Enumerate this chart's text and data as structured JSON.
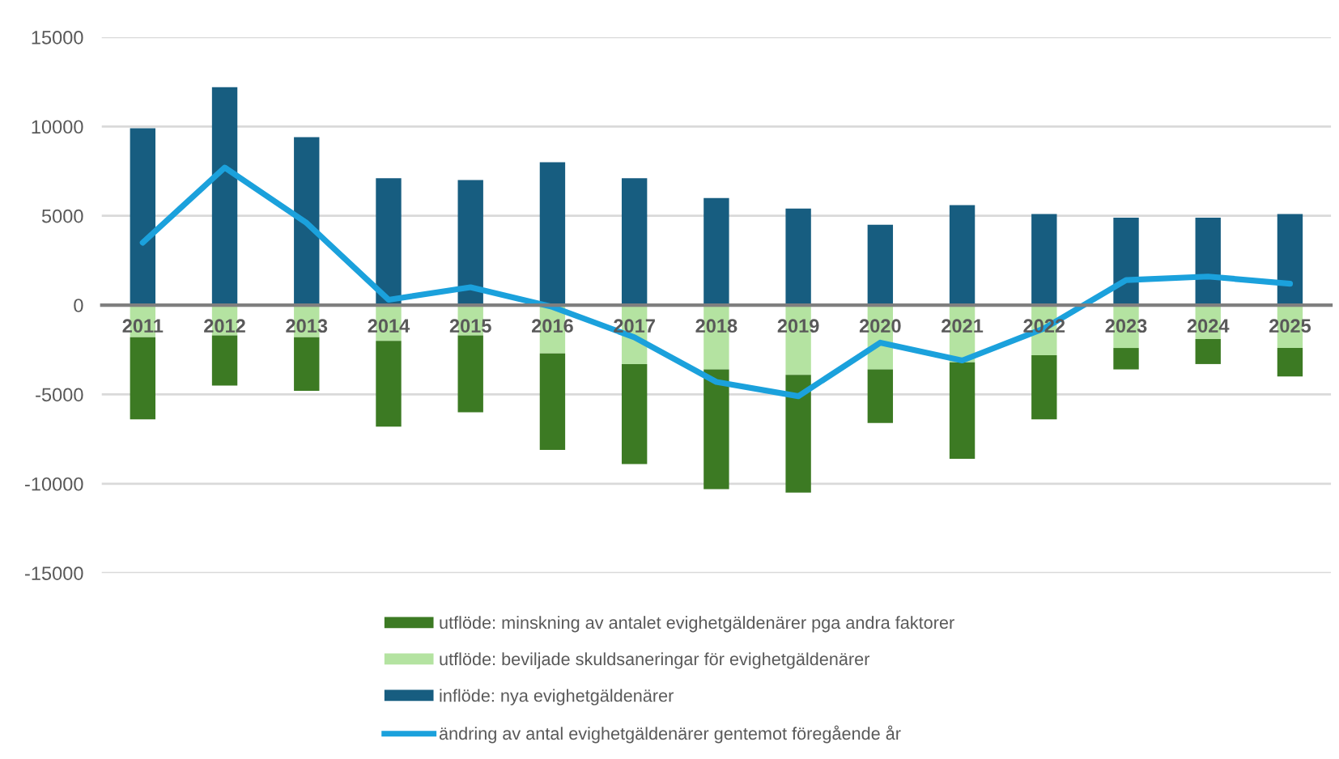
{
  "chart_data": {
    "type": "bar",
    "stacked": true,
    "categories": [
      "2011",
      "2012",
      "2013",
      "2014",
      "2015",
      "2016",
      "2017",
      "2018",
      "2019",
      "2020",
      "2021",
      "2022",
      "2023",
      "2024",
      "2025"
    ],
    "series": [
      {
        "name": "inflöde: nya evighetgäldenärer",
        "color": "#175d80",
        "values": [
          9900,
          12200,
          9400,
          7100,
          7000,
          8000,
          7100,
          6000,
          5400,
          4500,
          5600,
          5100,
          4900,
          4900,
          5100
        ]
      },
      {
        "name": "utflöde: beviljade skuldsaneringar för evighetgäldenärer",
        "color": "#b4e3a1",
        "values": [
          -1800,
          -1700,
          -1800,
          -2000,
          -1700,
          -2700,
          -3300,
          -3600,
          -3900,
          -3600,
          -3200,
          -2800,
          -2400,
          -1900,
          -2400
        ]
      },
      {
        "name": "utflöde: minskning av antalet evighetgäldenärer pga andra faktorer",
        "color": "#3c7a23",
        "values": [
          -4600,
          -2800,
          -3000,
          -4800,
          -4300,
          -5400,
          -5600,
          -6700,
          -6600,
          -3000,
          -5400,
          -3600,
          -1200,
          -1400,
          -1600
        ]
      },
      {
        "name": "ändring av antal evighetgäldenärer gentemot föregående år",
        "type": "line",
        "color": "#1ba1dc",
        "values": [
          3500,
          7700,
          4600,
          300,
          1000,
          -100,
          -1800,
          -4300,
          -5100,
          -2100,
          -3100,
          -1300,
          1400,
          1600,
          1200
        ]
      }
    ],
    "ylim": [
      -15000,
      15000
    ],
    "yticks": [
      -15000,
      -10000,
      -5000,
      0,
      5000,
      10000,
      15000
    ],
    "grid": "y",
    "legend": "bottom"
  }
}
